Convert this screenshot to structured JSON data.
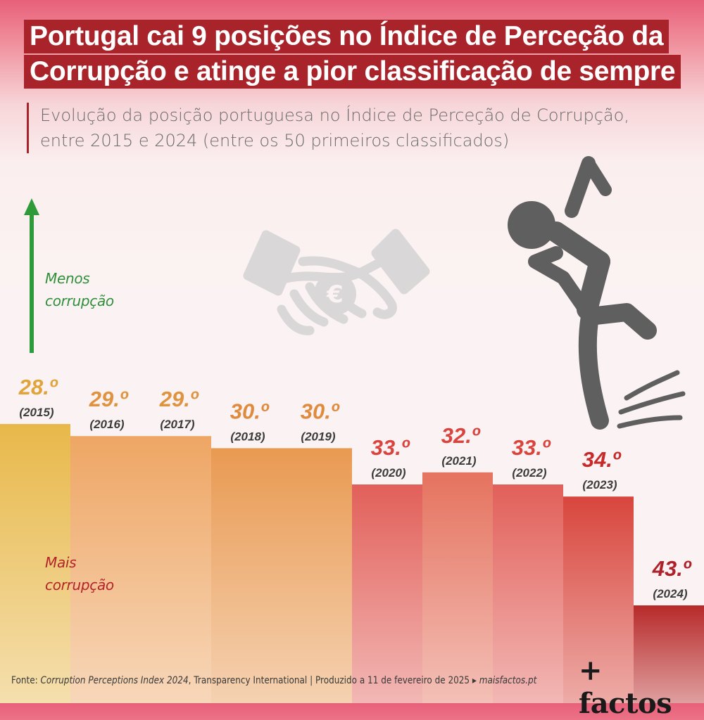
{
  "header": {
    "title_line1": "Portugal cai 9 posições no Índice de Perceção da",
    "title_line2": "Corrupção e atinge a pior classificação de sempre",
    "subtitle_line1": "Evolução da posição portuguesa no Índice de Perceção de Corrupção,",
    "subtitle_line2": "entre 2015 e 2024 (entre os 50 primeiros classificados)"
  },
  "axis_labels": {
    "less_line1": "Menos",
    "less_line2": "corrupção",
    "more_line1": "Mais",
    "more_line2": "corrupção"
  },
  "chart_data": {
    "type": "bar",
    "categories": [
      "2015",
      "2016",
      "2017",
      "2018",
      "2019",
      "2020",
      "2021",
      "2022",
      "2023",
      "2024"
    ],
    "category_labels": [
      "(2015)",
      "(2016)",
      "(2017)",
      "(2018)",
      "(2019)",
      "(2020)",
      "(2021)",
      "(2022)",
      "(2023)",
      "(2024)"
    ],
    "values": [
      28,
      29,
      29,
      30,
      30,
      33,
      32,
      33,
      34,
      43
    ],
    "value_labels": [
      "28.º",
      "29.º",
      "29.º",
      "30.º",
      "30.º",
      "33.º",
      "32.º",
      "33.º",
      "34.º",
      "43.º"
    ],
    "value_label_colors": [
      "#e0a43a",
      "#e0933f",
      "#e0933f",
      "#e08a3e",
      "#e08a3e",
      "#d9453e",
      "#d9453e",
      "#d9453e",
      "#c72a2a",
      "#b0202a"
    ],
    "bar_colors": [
      "#e8b84a",
      "#eea664",
      "#eea664",
      "#e99a52",
      "#e99a52",
      "#e2605a",
      "#e5735f",
      "#e2605a",
      "#d8463d",
      "#b82a2a"
    ],
    "ylim": [
      1,
      50
    ],
    "inverted": true,
    "grid": false,
    "legend": "none"
  },
  "footer": {
    "source_prefix": "Fonte: ",
    "source_title": "Corruption Perceptions Index 2024",
    "source_rest": ", Transparency International  |  Produzido a 11 de fevereiro de 2025 ▸ ",
    "site": "maisfactos.pt"
  },
  "brand": {
    "logo": "+ factos"
  },
  "icons": [
    "arrow-up-icon",
    "arrow-down-icon",
    "handshake-euro-icon",
    "falling-person-icon"
  ],
  "colors": {
    "title_bg": "#a8232a",
    "arrow_up": "#2f9a3a",
    "arrow_down": "#c4232b",
    "icon_gray": "#d9d7d7",
    "person": "#5f5f5f"
  }
}
